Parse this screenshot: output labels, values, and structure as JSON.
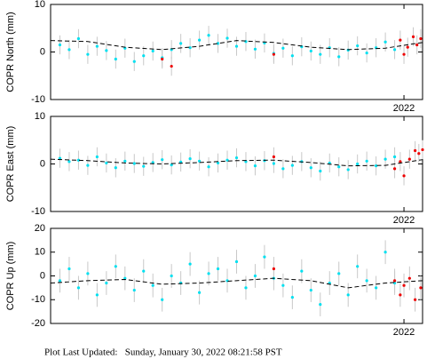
{
  "chart_data": [
    {
      "type": "scatter",
      "y_label": "COPR North (mm)",
      "xlim": [
        2020.1,
        2022.1
      ],
      "xticks": [
        2022
      ],
      "ylim": [
        -10,
        10
      ],
      "yticks": [
        10,
        0,
        -10
      ],
      "series": [
        {
          "color": "#00e0f0",
          "error": 2,
          "x": [
            2020.15,
            2020.2,
            2020.25,
            2020.3,
            2020.35,
            2020.4,
            2020.45,
            2020.5,
            2020.55,
            2020.6,
            2020.65,
            2020.7,
            2020.75,
            2020.8,
            2020.85,
            2020.9,
            2020.95,
            2021.0,
            2021.05,
            2021.1,
            2021.15,
            2021.2,
            2021.25,
            2021.3,
            2021.35,
            2021.4,
            2021.45,
            2021.5,
            2021.55,
            2021.6,
            2021.65,
            2021.7,
            2021.75,
            2021.8,
            2021.85,
            2021.9,
            2021.95
          ],
          "values": [
            1.5,
            0.5,
            2.8,
            -0.5,
            1.2,
            0.3,
            -1.5,
            0.8,
            -2.0,
            -0.8,
            0.2,
            -1.2,
            0.5,
            1.8,
            0.9,
            2.5,
            3.5,
            1.8,
            2.9,
            1.2,
            2.2,
            0.6,
            1.9,
            -0.3,
            0.8,
            -0.8,
            1.1,
            0.2,
            -0.5,
            0.9,
            -1.0,
            0.4,
            1.3,
            -0.2,
            0.9,
            2.1,
            0.5
          ]
        },
        {
          "color": "#ee0000",
          "error": 2,
          "x": [
            2020.7,
            2020.75,
            2021.3,
            2021.98,
            2022.0,
            2022.02,
            2022.05,
            2022.07,
            2022.09
          ],
          "values": [
            -1.5,
            -3.0,
            -0.5,
            2.5,
            -0.5,
            1.0,
            3.2,
            1.5,
            2.8
          ]
        },
        {
          "color": "#000000",
          "line_style": "dashed",
          "x": [
            2020.1,
            2020.3,
            2020.5,
            2020.7,
            2020.9,
            2021.1,
            2021.3,
            2021.5,
            2021.7,
            2021.9,
            2022.1
          ],
          "values": [
            2.4,
            2.2,
            1.0,
            0.5,
            1.2,
            2.4,
            2.0,
            1.0,
            0.5,
            0.8,
            2.0
          ]
        }
      ]
    },
    {
      "type": "scatter",
      "y_label": "COPR East (mm)",
      "xlim": [
        2020.1,
        2022.1
      ],
      "xticks": [
        2022
      ],
      "ylim": [
        -10,
        10
      ],
      "yticks": [
        10,
        0,
        -10
      ],
      "series": [
        {
          "color": "#00e0f0",
          "error": 2,
          "x": [
            2020.15,
            2020.2,
            2020.25,
            2020.3,
            2020.35,
            2020.4,
            2020.45,
            2020.5,
            2020.55,
            2020.6,
            2020.65,
            2020.7,
            2020.75,
            2020.8,
            2020.85,
            2020.9,
            2020.95,
            2021.0,
            2021.05,
            2021.1,
            2021.15,
            2021.2,
            2021.25,
            2021.3,
            2021.35,
            2021.4,
            2021.45,
            2021.5,
            2021.55,
            2021.6,
            2021.65,
            2021.7,
            2021.75,
            2021.8,
            2021.85,
            2021.9,
            2021.95
          ],
          "values": [
            1.2,
            0.5,
            0.8,
            -0.3,
            1.5,
            0.2,
            -0.8,
            0.6,
            0.1,
            -0.5,
            0.3,
            0.9,
            -0.2,
            0.4,
            1.1,
            0.6,
            -0.6,
            0.2,
            0.8,
            1.3,
            0.5,
            -0.4,
            0.7,
            0.1,
            -1.0,
            -0.3,
            0.5,
            -0.8,
            -1.5,
            0.2,
            -0.6,
            -1.2,
            0.0,
            0.6,
            -0.4,
            1.0,
            1.5
          ]
        },
        {
          "color": "#ee0000",
          "error": 2,
          "x": [
            2021.3,
            2021.95,
            2021.98,
            2022.0,
            2022.03,
            2022.06,
            2022.08,
            2022.1
          ],
          "values": [
            1.5,
            -1.0,
            0.5,
            -2.5,
            1.0,
            2.8,
            2.2,
            3.0
          ]
        },
        {
          "color": "#000000",
          "line_style": "dashed",
          "x": [
            2020.1,
            2020.3,
            2020.5,
            2020.7,
            2020.9,
            2021.1,
            2021.3,
            2021.5,
            2021.7,
            2021.9,
            2022.1
          ],
          "values": [
            1.0,
            0.7,
            0.2,
            0.0,
            0.3,
            0.7,
            0.8,
            0.3,
            -0.4,
            -0.3,
            0.9
          ]
        }
      ]
    },
    {
      "type": "scatter",
      "y_label": "COPR Up (mm)",
      "xlim": [
        2020.1,
        2022.1
      ],
      "xticks": [
        2022
      ],
      "ylim": [
        -20,
        20
      ],
      "yticks": [
        20,
        10,
        0,
        -10,
        -20
      ],
      "series": [
        {
          "color": "#00e0f0",
          "error": 5,
          "x": [
            2020.15,
            2020.2,
            2020.25,
            2020.3,
            2020.35,
            2020.4,
            2020.45,
            2020.5,
            2020.55,
            2020.6,
            2020.65,
            2020.7,
            2020.75,
            2020.8,
            2020.85,
            2020.9,
            2020.95,
            2021.0,
            2021.05,
            2021.1,
            2021.15,
            2021.2,
            2021.25,
            2021.3,
            2021.35,
            2021.4,
            2021.45,
            2021.5,
            2021.55,
            2021.6,
            2021.65,
            2021.7,
            2021.75,
            2021.8,
            2021.85,
            2021.9,
            2021.95
          ],
          "values": [
            -2,
            3,
            -5,
            1,
            -8,
            -3,
            4,
            -1,
            -6,
            2,
            -4,
            -10,
            0,
            -3,
            5,
            -7,
            1,
            3,
            -2,
            6,
            -5,
            0,
            8,
            -1,
            -4,
            -9,
            2,
            -6,
            -12,
            -3,
            1,
            -8,
            4,
            -2,
            -5,
            10,
            -3
          ]
        },
        {
          "color": "#ee0000",
          "error": 5,
          "x": [
            2021.3,
            2021.95,
            2021.98,
            2022.0,
            2022.03,
            2022.06,
            2022.09
          ],
          "values": [
            3,
            -2,
            -8,
            -4,
            -1,
            -10,
            -5
          ]
        },
        {
          "color": "#000000",
          "line_style": "dashed",
          "x": [
            2020.1,
            2020.3,
            2020.5,
            2020.7,
            2020.9,
            2021.1,
            2021.3,
            2021.5,
            2021.7,
            2021.9,
            2022.1
          ],
          "values": [
            -3,
            -2,
            -1.5,
            -3.5,
            -3,
            -2,
            -1,
            -2,
            -5,
            -3,
            -2
          ]
        }
      ]
    }
  ],
  "footer": "Plot Last Updated:   Sunday, January 30, 2022 08:21:58 PST"
}
